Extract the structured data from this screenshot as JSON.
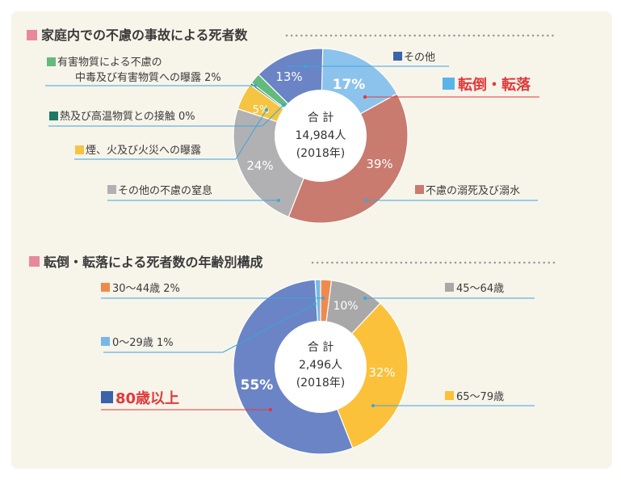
{
  "colors": {
    "panel_bg": "#f7f4ea",
    "title_square": "#e8899b",
    "highlight_red": "#e03a3a",
    "dot_gray": "#9a9a9a"
  },
  "chart_data": [
    {
      "type": "pie",
      "title": "家庭内での不慮の事故による死者数",
      "center_label": [
        "合 計",
        "14,984人",
        "(2018年)"
      ],
      "slices": [
        {
          "name": "その他",
          "value": 17,
          "label": "17%",
          "color": "#8cc3ec"
        },
        {
          "name": "不慮の溺死及び溺水",
          "value": 39,
          "label": "39%",
          "color": "#c87b6e"
        },
        {
          "name": "その他の不慮の窒息",
          "value": 24,
          "label": "24%",
          "color": "#b1b1b3"
        },
        {
          "name": "煙、火及び火災への曝露",
          "value": 5,
          "label": "5%",
          "color": "#f5c443"
        },
        {
          "name": "熱及び高温物質との接触",
          "value": 0,
          "label": "0%",
          "color": "#1f7a63"
        },
        {
          "name": "有害物質による不慮の中毒及び有害物質への曝露",
          "value": 2,
          "label": "2%",
          "color": "#62bb7c"
        },
        {
          "name": "転倒・転落",
          "value": 13,
          "label": "13%",
          "color": "#6a84c6"
        }
      ],
      "annotations": {
        "other": "その他",
        "drowning": "不慮の溺死及び溺水",
        "suffocation": "その他の不慮の窒息",
        "fire": "煙、火及び火災への曝露",
        "heat": "熱及び高温物質との接触 0%",
        "poison_line1": "有害物質による不慮の",
        "poison_line2": "中毒及び有害物質への曝露 2%",
        "falls": "転倒・転落"
      }
    },
    {
      "type": "pie",
      "title": "転倒・転落による死者数の年齢別構成",
      "center_label": [
        "合 計",
        "2,496人",
        "(2018年)"
      ],
      "slices": [
        {
          "name": "30〜44歳",
          "value": 2,
          "label": "",
          "color": "#ef8a4e"
        },
        {
          "name": "45〜64歳",
          "value": 10,
          "label": "10%",
          "color": "#a8a8a8"
        },
        {
          "name": "65〜79歳",
          "value": 32,
          "label": "32%",
          "color": "#fbc13a"
        },
        {
          "name": "80歳以上",
          "value": 55,
          "label": "55%",
          "color": "#6a84c6"
        },
        {
          "name": "0〜29歳",
          "value": 1,
          "label": "",
          "color": "#77b8e6"
        }
      ],
      "annotations": {
        "age30": "30〜44歳 2%",
        "age45": "45〜64歳",
        "age0": "0〜29歳 1%",
        "age65": "65〜79歳",
        "age80": "80歳以上"
      }
    }
  ]
}
